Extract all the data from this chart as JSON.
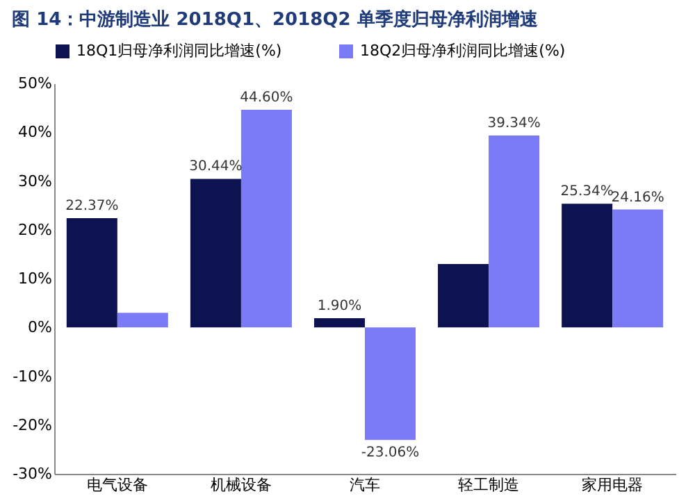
{
  "chart_data": {
    "type": "bar",
    "title": "图 14：中游制造业 2018Q1、2018Q2 单季度归母净利润增速",
    "categories": [
      "电气设备",
      "机械设备",
      "汽车",
      "轻工制造",
      "家用电器"
    ],
    "series": [
      {
        "name": "18Q1归母净利润同比增速(%)",
        "color": "#0d1250",
        "values": [
          22.37,
          30.44,
          1.9,
          13,
          25.34
        ],
        "value_labels": [
          "22.37%",
          "30.44%",
          "1.90%",
          null,
          "25.34%"
        ]
      },
      {
        "name": "18Q2归母净利润同比增速(%)",
        "color": "#7b7bf7",
        "values": [
          3,
          44.6,
          -23.06,
          39.34,
          24.16
        ],
        "value_labels": [
          null,
          "44.60%",
          "-23.06%",
          "39.34%",
          "24.16%"
        ]
      }
    ],
    "ylim": [
      -30,
      50
    ],
    "yticks": [
      {
        "value": -30,
        "label": "-30%"
      },
      {
        "value": -20,
        "label": "-20%"
      },
      {
        "value": -10,
        "label": "-10%"
      },
      {
        "value": 0,
        "label": "0%"
      },
      {
        "value": 10,
        "label": "10%"
      },
      {
        "value": 20,
        "label": "20%"
      },
      {
        "value": 30,
        "label": "30%"
      },
      {
        "value": 40,
        "label": "40%"
      },
      {
        "value": 50,
        "label": "50%"
      }
    ],
    "legend": "top",
    "grid": false
  }
}
